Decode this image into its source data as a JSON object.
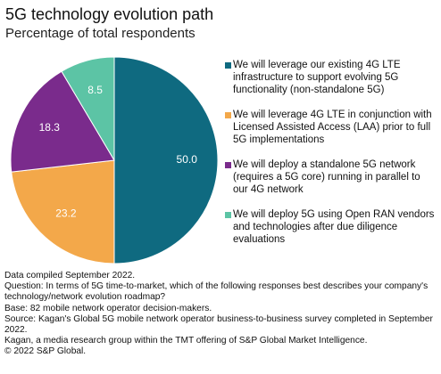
{
  "chart_data": {
    "type": "pie",
    "title": "5G technology evolution path",
    "subtitle": "Percentage of total respondents",
    "categories": [
      "We will leverage our existing 4G LTE infrastructure to support evolving 5G functionality (non-standalone 5G)",
      "We will leverage 4G LTE in conjunction with Licensed Assisted Access (LAA) prior to full 5G implementations",
      "We will deploy a standalone 5G network (requires a 5G core) running in parallel to our 4G network",
      "We will deploy 5G using Open RAN vendors and technologies after due diligence evaluations"
    ],
    "values": [
      50,
      23.2,
      18.3,
      8.5
    ],
    "value_labels": [
      "50.0",
      "23.2",
      "18.3",
      "8.5"
    ],
    "colors": [
      "#0f6a80",
      "#f3a84a",
      "#7a2b8c",
      "#5cc4a5"
    ],
    "notes": [
      "Data compiled September 2022.",
      "Question: In terms of 5G time-to-market, which of the following responses best describes your company's technology/network evolution roadmap?",
      "Base: 82 mobile network operator decision-makers.",
      "Source: Kagan's Global 5G mobile network operator business-to-business survey completed in September 2022.",
      "Kagan, a media research group within the TMT offering of S&P Global Market Intelligence.",
      "© 2022 S&P Global."
    ]
  }
}
